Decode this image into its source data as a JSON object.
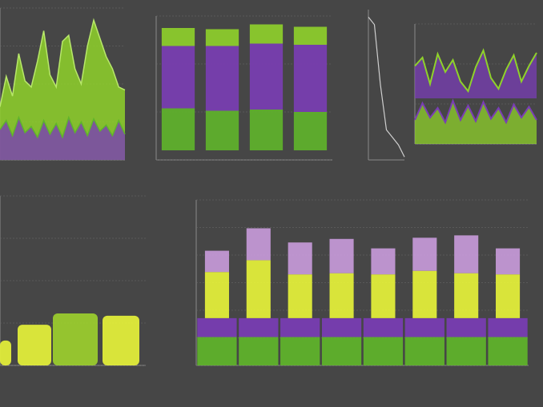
{
  "colors": {
    "background": "#464646",
    "lime": "#8fd22a",
    "yellow": "#e6f23a",
    "green": "#5fb52a",
    "purple": "#7a3db5",
    "lilac": "#c79ad9",
    "grid": "#6a6a6a"
  },
  "chart_data": [
    {
      "id": "p1",
      "type": "area",
      "title": "",
      "xlabel": "",
      "ylabel": "",
      "ylim": [
        0,
        10
      ],
      "x": [
        0,
        1,
        2,
        3,
        4,
        5,
        6,
        7,
        8,
        9,
        10,
        11,
        12,
        13,
        14,
        15,
        16,
        17,
        18,
        19,
        20
      ],
      "series": [
        {
          "values": [
            3.5,
            5.5,
            4.2,
            7.0,
            5.2,
            4.8,
            6.5,
            8.5,
            5.6,
            4.8,
            7.8,
            8.2,
            6.0,
            5.0,
            7.5,
            9.2,
            8.0,
            6.8,
            6.0,
            4.8,
            4.6
          ]
        },
        {
          "values": [
            2.0,
            2.6,
            1.6,
            2.8,
            1.8,
            2.2,
            1.5,
            2.6,
            1.7,
            2.4,
            1.5,
            2.8,
            1.8,
            2.5,
            1.6,
            2.7,
            1.9,
            2.3,
            1.6,
            2.6,
            1.7
          ]
        }
      ],
      "xticklabels": [
        "",
        "",
        ""
      ]
    },
    {
      "id": "p2",
      "type": "bar",
      "title": "",
      "categories": [
        "",
        "",
        "",
        ""
      ],
      "series": [
        {
          "values": [
            3.5,
            3.3,
            3.4,
            3.2
          ]
        },
        {
          "values": [
            5.2,
            5.4,
            5.5,
            5.6
          ]
        },
        {
          "values": [
            1.5,
            1.4,
            1.6,
            1.5
          ]
        }
      ],
      "ylim": [
        0,
        12
      ]
    },
    {
      "id": "p3",
      "type": "line",
      "title": "",
      "x": [
        0,
        1,
        2,
        3,
        4,
        5,
        6
      ],
      "values": [
        9.5,
        9.0,
        5.0,
        2.0,
        1.5,
        1.0,
        0.2
      ],
      "ylim": [
        0,
        10
      ]
    },
    {
      "id": "p4",
      "type": "area",
      "title": "",
      "x": [
        0,
        1,
        2,
        3,
        4,
        5,
        6,
        7,
        8,
        9,
        10,
        11,
        12,
        13,
        14,
        15,
        16
      ],
      "series": [
        {
          "values": [
            6.5,
            7.2,
            5.0,
            7.5,
            6.0,
            7.0,
            5.2,
            4.4,
            6.4,
            7.8,
            5.5,
            4.6,
            6.2,
            7.4,
            5.2,
            6.5,
            7.6
          ]
        },
        {
          "values": [
            2.0,
            3.4,
            2.2,
            3.0,
            1.8,
            3.6,
            2.0,
            3.2,
            1.9,
            3.5,
            2.1,
            3.0,
            1.8,
            3.3,
            2.2,
            3.1,
            2.0
          ]
        }
      ],
      "ylim": [
        0,
        10
      ]
    },
    {
      "id": "p5",
      "type": "bar",
      "title": "",
      "categories": [
        "",
        "",
        "",
        ""
      ],
      "values": [
        2.2,
        3.6,
        4.6,
        4.4
      ],
      "ylim": [
        0,
        15
      ]
    },
    {
      "id": "p6",
      "type": "bar",
      "title": "",
      "categories": [
        "",
        "",
        "",
        "",
        "",
        "",
        "",
        ""
      ],
      "series": [
        {
          "values": [
            2.4,
            2.4,
            2.4,
            2.4,
            2.4,
            2.4,
            2.4,
            2.4
          ]
        },
        {
          "values": [
            1.6,
            1.6,
            1.6,
            1.6,
            1.6,
            1.6,
            1.6,
            1.6
          ]
        },
        {
          "values": [
            3.9,
            4.9,
            3.7,
            3.8,
            3.7,
            4.0,
            3.8,
            3.7
          ]
        },
        {
          "values": [
            1.8,
            2.7,
            2.7,
            2.9,
            2.2,
            2.8,
            3.2,
            2.2
          ]
        }
      ],
      "ylim": [
        0,
        14
      ]
    }
  ]
}
